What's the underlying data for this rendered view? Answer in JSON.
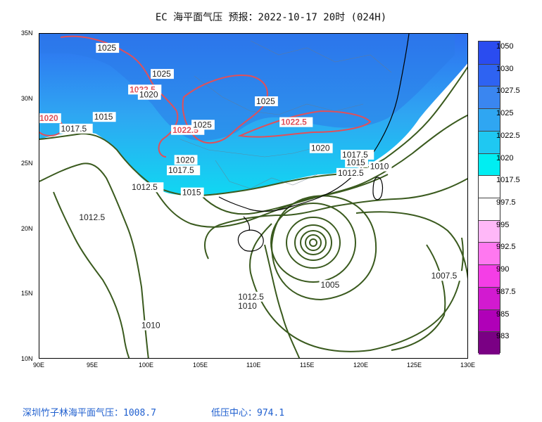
{
  "title": "EC 海平面气压 预报：2022-10-17 20时 (024H)",
  "axes": {
    "x_ticks": [
      "90E",
      "95E",
      "100E",
      "105E",
      "110E",
      "115E",
      "120E",
      "125E",
      "130E"
    ],
    "y_ticks": [
      "35N",
      "30N",
      "25N",
      "20N",
      "15N",
      "10N"
    ],
    "lon_range": [
      90,
      130
    ],
    "lat_range": [
      10,
      35
    ]
  },
  "legend": {
    "levels": [
      {
        "label": "1050",
        "color": "#2a4cf0"
      },
      {
        "label": "1030",
        "color": "#2e63f2"
      },
      {
        "label": "1027.5",
        "color": "#3a86f0"
      },
      {
        "label": "1025",
        "color": "#2fa6f2"
      },
      {
        "label": "1022.5",
        "color": "#1fc8f2"
      },
      {
        "label": "1020",
        "color": "#00eef2"
      },
      {
        "label": "1017.5",
        "color": "#ffffff"
      },
      {
        "label": "997.5",
        "color": "#ffffff"
      },
      {
        "label": "995",
        "color": "#ffb8f8"
      },
      {
        "label": "992.5",
        "color": "#ff78f0"
      },
      {
        "label": "990",
        "color": "#f43ee6"
      },
      {
        "label": "987.5",
        "color": "#d21ad0"
      },
      {
        "label": "985",
        "color": "#b000b8"
      },
      {
        "label": "983",
        "color": "#7a0084"
      }
    ]
  },
  "isobar_labels": [
    {
      "text": "1025",
      "lon": 95.4,
      "lat": 33.7,
      "kind": "normal"
    },
    {
      "text": "1025",
      "lon": 100.5,
      "lat": 31.7,
      "kind": "normal"
    },
    {
      "text": "1022.5",
      "lon": 98.4,
      "lat": 30.5,
      "kind": "red"
    },
    {
      "text": "1020",
      "lon": 99.3,
      "lat": 30.1,
      "kind": "normal"
    },
    {
      "text": "1020",
      "lon": 90.0,
      "lat": 28.3,
      "kind": "red"
    },
    {
      "text": "1015",
      "lon": 95.1,
      "lat": 28.4,
      "kind": "normal"
    },
    {
      "text": "1017.5",
      "lon": 92.0,
      "lat": 27.5,
      "kind": "normal"
    },
    {
      "text": "1022.5",
      "lon": 102.4,
      "lat": 27.4,
      "kind": "red"
    },
    {
      "text": "1025",
      "lon": 104.3,
      "lat": 27.8,
      "kind": "normal"
    },
    {
      "text": "1025",
      "lon": 110.2,
      "lat": 29.6,
      "kind": "normal"
    },
    {
      "text": "1022.5",
      "lon": 112.5,
      "lat": 28.0,
      "kind": "red"
    },
    {
      "text": "1020",
      "lon": 102.7,
      "lat": 25.1,
      "kind": "normal"
    },
    {
      "text": "1017.5",
      "lon": 102.0,
      "lat": 24.3,
      "kind": "normal"
    },
    {
      "text": "1012.5",
      "lon": 98.6,
      "lat": 23.0,
      "kind": "normal"
    },
    {
      "text": "1015",
      "lon": 103.3,
      "lat": 22.6,
      "kind": "normal"
    },
    {
      "text": "1012.5",
      "lon": 93.7,
      "lat": 20.7,
      "kind": "normal"
    },
    {
      "text": "1020",
      "lon": 115.3,
      "lat": 26.0,
      "kind": "normal"
    },
    {
      "text": "1017.5",
      "lon": 118.2,
      "lat": 25.5,
      "kind": "normal"
    },
    {
      "text": "1015",
      "lon": 118.6,
      "lat": 24.9,
      "kind": "normal"
    },
    {
      "text": "1012.5",
      "lon": 117.8,
      "lat": 24.1,
      "kind": "normal"
    },
    {
      "text": "1010",
      "lon": 120.8,
      "lat": 24.6,
      "kind": "normal"
    },
    {
      "text": "1012.5",
      "lon": 108.5,
      "lat": 14.6,
      "kind": "normal"
    },
    {
      "text": "1010",
      "lon": 108.5,
      "lat": 13.9,
      "kind": "normal"
    },
    {
      "text": "1005",
      "lon": 116.2,
      "lat": 15.5,
      "kind": "normal"
    },
    {
      "text": "1007.5",
      "lon": 126.5,
      "lat": 16.2,
      "kind": "normal"
    },
    {
      "text": "1010",
      "lon": 99.5,
      "lat": 12.4,
      "kind": "normal"
    }
  ],
  "footer": {
    "station": "深圳竹子林海平面气压：1008.7",
    "low_center": "低压中心：974.1"
  },
  "colors": {
    "isobar": "#3a5a1e",
    "high_contour": "#e0505a",
    "border": "#000000",
    "footer_text": "#1f5fcf"
  }
}
